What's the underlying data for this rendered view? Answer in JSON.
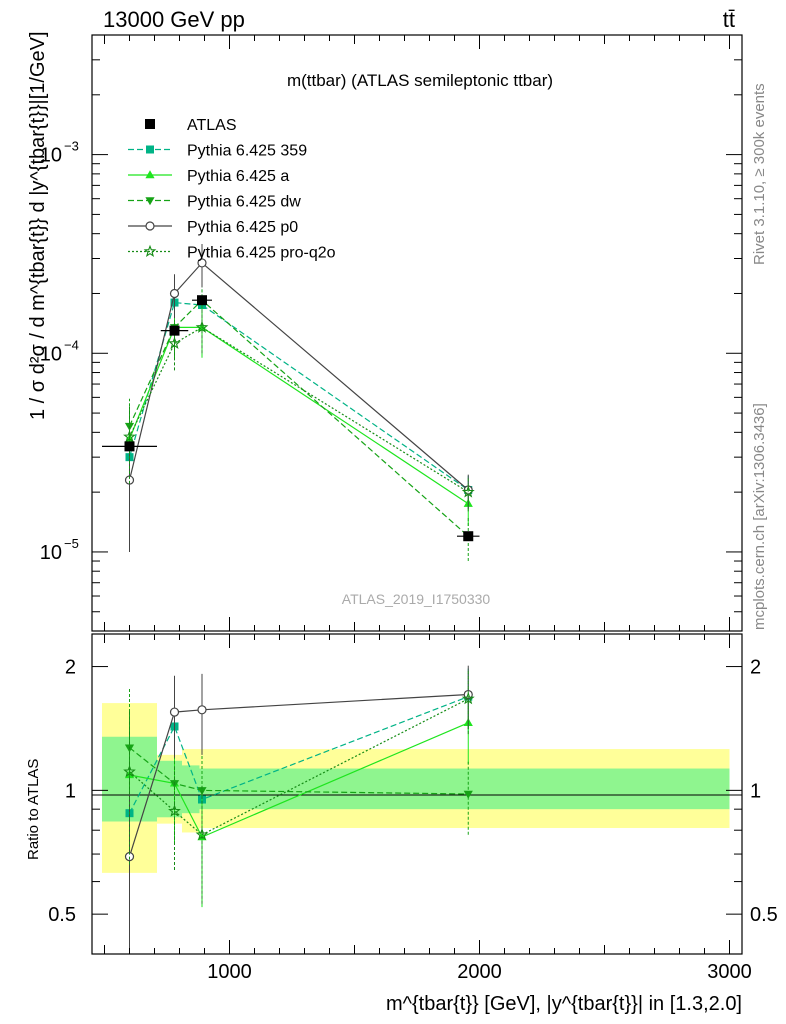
{
  "header": {
    "left": "13000 GeV pp",
    "right": "tt̄",
    "side_top": "Rivet 3.1.10, ≥ 300k events",
    "side_bottom": "mcplots.cern.ch [arXiv:1306.3436]"
  },
  "colors": {
    "data": "#000000",
    "p359": "#00b386",
    "a": "#1ee51e",
    "dw": "#16a316",
    "p0": "#444444",
    "q2o": "#168c16",
    "band_inner": "#8ff58f",
    "band_outer": "#ffff99"
  },
  "chart_data": [
    {
      "type": "line",
      "title": "m(ttbar) (ATLAS semileptonic ttbar)",
      "watermark": "ATLAS_2019_I1750330",
      "ylabel": "1 / σ d²σ / d m^{tbar{t}} d |y^{tbar{t}}|[1/GeV]",
      "yscale": "log",
      "xlim": [
        450,
        3050
      ],
      "ylim": [
        4e-06,
        0.004
      ],
      "y_ticks": [
        {
          "value": 1e-05,
          "base": "10",
          "exp": "−5"
        },
        {
          "value": 0.0001,
          "base": "10",
          "exp": "−4"
        },
        {
          "value": 0.001,
          "base": "10",
          "exp": "−3"
        }
      ],
      "legend_position": "top-left",
      "data": {
        "name": "ATLAS",
        "x": [
          600,
          780,
          890,
          1955
        ],
        "y": [
          3.4e-05,
          0.00013,
          0.000185,
          1.2e-05
        ],
        "xerr": [
          [
            110,
            110
          ],
          [
            55,
            55
          ],
          [
            40,
            40
          ],
          [
            45,
            45
          ]
        ]
      },
      "series": [
        {
          "key": "p359",
          "name": "Pythia 6.425 359",
          "x": [
            600,
            780,
            890,
            1955
          ],
          "y": [
            3e-05,
            0.00018,
            0.000175,
            2.05e-05
          ],
          "err": [
            1.6e-05,
            5e-05,
            4e-05,
            4e-06
          ],
          "marker": "square",
          "dash": "6,3"
        },
        {
          "key": "a",
          "name": "Pythia 6.425 a",
          "x": [
            600,
            780,
            890,
            1955
          ],
          "y": [
            3.7e-05,
            0.000135,
            0.000135,
            1.75e-05
          ],
          "err": [
            1.6e-05,
            4e-05,
            4e-05,
            4e-06
          ],
          "marker": "triangle-up",
          "dash": ""
        },
        {
          "key": "dw",
          "name": "Pythia 6.425 dw",
          "x": [
            600,
            780,
            890,
            1955
          ],
          "y": [
            4.3e-05,
            0.000135,
            0.000185,
            1.2e-05
          ],
          "err": [
            1.6e-05,
            4e-05,
            5e-05,
            3e-06
          ],
          "marker": "triangle-down",
          "dash": "6,3"
        },
        {
          "key": "p0",
          "name": "Pythia 6.425 p0",
          "x": [
            600,
            780,
            890,
            1955
          ],
          "y": [
            2.3e-05,
            0.0002,
            0.000285,
            2.05e-05
          ],
          "err": [
            1.3e-05,
            5e-05,
            7e-05,
            4e-06
          ],
          "marker": "circle-open",
          "dash": ""
        },
        {
          "key": "q2o",
          "name": "Pythia 6.425 pro-q2o",
          "x": [
            600,
            780,
            890,
            1955
          ],
          "y": [
            3.8e-05,
            0.000112,
            0.000135,
            2e-05
          ],
          "err": [
            1.6e-05,
            3e-05,
            3.5e-05,
            4e-06
          ],
          "marker": "star",
          "dash": "2,2"
        }
      ]
    },
    {
      "type": "line",
      "ylabel": "Ratio to ATLAS",
      "yscale": "log",
      "xlim": [
        450,
        3050
      ],
      "ylim": [
        0.4,
        2.4
      ],
      "y_ticks": [
        {
          "value": 0.5,
          "label": "0.5"
        },
        {
          "value": 1,
          "label": "1"
        },
        {
          "value": 2,
          "label": "2"
        }
      ],
      "x_ticks": [
        {
          "value": 1000,
          "label": "1000"
        },
        {
          "value": 2000,
          "label": "2000"
        },
        {
          "value": 3000,
          "label": "3000"
        }
      ],
      "xlabel": "m^{tbar{t}} [GeV], |y^{tbar{t}}| in [1.3,2.0]",
      "bands": [
        {
          "x0": 490,
          "x1": 710,
          "inner": [
            0.84,
            1.35
          ],
          "outer": [
            0.63,
            1.63
          ]
        },
        {
          "x0": 710,
          "x1": 810,
          "inner": [
            0.86,
            1.18
          ],
          "outer": [
            0.83,
            1.22
          ]
        },
        {
          "x0": 810,
          "x1": 880,
          "inner": [
            0.88,
            1.15
          ],
          "outer": [
            0.79,
            1.26
          ]
        },
        {
          "x0": 880,
          "x1": 3000,
          "inner": [
            0.9,
            1.13
          ],
          "outer": [
            0.81,
            1.26
          ]
        }
      ],
      "series": [
        {
          "key": "p359",
          "x": [
            600,
            780,
            890,
            1955
          ],
          "y": [
            0.88,
            1.43,
            0.95,
            1.69
          ],
          "err": [
            0.45,
            0.35,
            0.25,
            0.3
          ]
        },
        {
          "key": "a",
          "x": [
            600,
            780,
            890,
            1955
          ],
          "y": [
            1.09,
            1.04,
            0.77,
            1.46
          ],
          "err": [
            0.45,
            0.3,
            0.25,
            0.3
          ]
        },
        {
          "key": "dw",
          "x": [
            600,
            780,
            890,
            1955
          ],
          "y": [
            1.27,
            1.04,
            1.0,
            0.98
          ],
          "err": [
            0.5,
            0.3,
            0.3,
            0.2
          ]
        },
        {
          "key": "p0",
          "x": [
            600,
            780,
            890,
            1955
          ],
          "y": [
            0.69,
            1.55,
            1.57,
            1.71
          ],
          "err": [
            0.3,
            0.35,
            0.35,
            0.3
          ]
        },
        {
          "key": "q2o",
          "x": [
            600,
            780,
            890,
            1955
          ],
          "y": [
            1.11,
            0.89,
            0.78,
            1.67
          ],
          "err": [
            0.45,
            0.25,
            0.25,
            0.3
          ]
        }
      ]
    }
  ]
}
